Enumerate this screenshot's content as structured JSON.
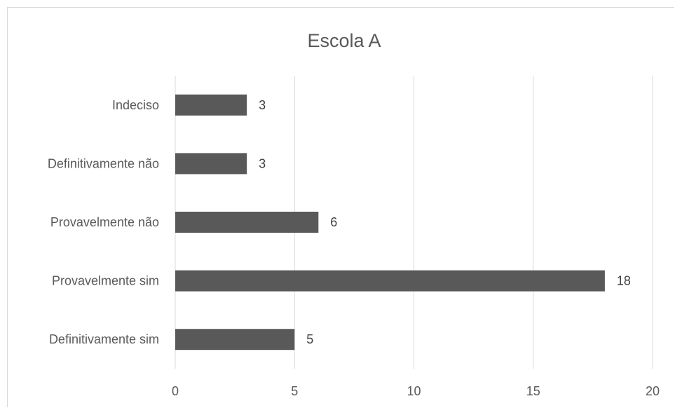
{
  "chart_data": {
    "type": "bar",
    "orientation": "horizontal",
    "title": "Escola A",
    "categories": [
      "Indeciso",
      "Definitivamente não",
      "Provavelmente não",
      "Provavelmente sim",
      "Definitivamente sim"
    ],
    "values": [
      3,
      3,
      6,
      18,
      5
    ],
    "xlim": [
      0,
      20
    ],
    "xticks": [
      "0",
      "5",
      "10",
      "15",
      "20"
    ],
    "xlabel": "",
    "ylabel": "",
    "grid": true,
    "legend": "none",
    "bar_color": "#595959",
    "gridline_color": "#d9d9d9",
    "text_color": "#595959"
  }
}
